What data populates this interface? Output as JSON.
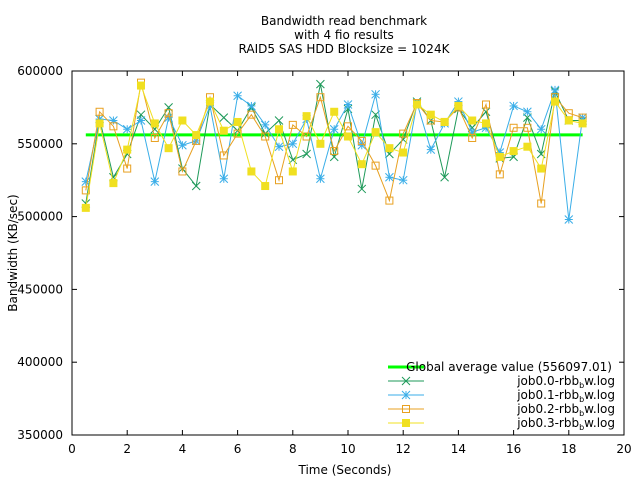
{
  "chart_data": {
    "type": "line",
    "title_lines": [
      "Bandwidth read benchmark",
      "with 4 fio results",
      "RAID5 SAS HDD  Blocksize = 1024K"
    ],
    "xlabel": "Time (Seconds)",
    "ylabel": "Bandwidth (KB/sec)",
    "xlim": [
      0,
      20
    ],
    "ylim": [
      350000,
      600000
    ],
    "xticks": [
      0,
      2,
      4,
      6,
      8,
      10,
      12,
      14,
      16,
      18,
      20
    ],
    "yticks": [
      350000,
      400000,
      450000,
      500000,
      550000,
      600000
    ],
    "grid": false,
    "legend_position": "bottom-right",
    "average": {
      "label": "Global average value (556097.01)",
      "value": 556097.01,
      "x_range": [
        0.5,
        18.5
      ],
      "color": "#00ff00"
    },
    "series": [
      {
        "name_main": "job0.0-rbb",
        "name_sub": "b",
        "name_end": "w.log",
        "color": "#1e9a5a",
        "marker": "x",
        "x": [
          0.5,
          1.0,
          1.5,
          2.0,
          2.5,
          3.0,
          3.5,
          4.0,
          4.5,
          5.0,
          5.5,
          6.0,
          6.5,
          7.0,
          7.5,
          8.0,
          8.5,
          9.0,
          9.5,
          10.0,
          10.5,
          11.0,
          11.5,
          12.0,
          12.5,
          13.0,
          13.5,
          14.0,
          14.5,
          15.0,
          15.5,
          16.0,
          16.5,
          17.0,
          17.5,
          18.0,
          18.5
        ],
        "values": [
          509000,
          567000,
          527000,
          543000,
          570000,
          560000,
          575000,
          533000,
          521000,
          577000,
          568000,
          559000,
          575000,
          557000,
          566000,
          539000,
          543000,
          591000,
          541000,
          574000,
          519000,
          570000,
          543000,
          553000,
          579000,
          566000,
          527000,
          574000,
          561000,
          572000,
          540000,
          541000,
          568000,
          543000,
          586000,
          566000,
          566000
        ]
      },
      {
        "name_main": "job0.1-rbb",
        "name_sub": "b",
        "name_end": "w.log",
        "color": "#3aaee8",
        "marker": "star",
        "x": [
          0.5,
          1.0,
          1.5,
          2.0,
          2.5,
          3.0,
          3.5,
          4.0,
          4.5,
          5.0,
          5.5,
          6.0,
          6.5,
          7.0,
          7.5,
          8.0,
          8.5,
          9.0,
          9.5,
          10.0,
          10.5,
          11.0,
          11.5,
          12.0,
          12.5,
          13.0,
          13.5,
          14.0,
          14.5,
          15.0,
          15.5,
          16.0,
          16.5,
          17.0,
          17.5,
          18.0,
          18.5
        ],
        "values": [
          524000,
          567000,
          566000,
          560000,
          566000,
          524000,
          568000,
          549000,
          552000,
          576000,
          526000,
          583000,
          576000,
          563000,
          548000,
          550000,
          567000,
          526000,
          560000,
          577000,
          549000,
          584000,
          527000,
          525000,
          578000,
          546000,
          564000,
          579000,
          558000,
          561000,
          544000,
          576000,
          572000,
          560000,
          587000,
          498000,
          568000
        ]
      },
      {
        "name_main": "job0.2-rbb",
        "name_sub": "b",
        "name_end": "w.log",
        "color": "#e8a020",
        "marker": "square",
        "x": [
          0.5,
          1.0,
          1.5,
          2.0,
          2.5,
          3.0,
          3.5,
          4.0,
          4.5,
          5.0,
          5.5,
          6.0,
          6.5,
          7.0,
          7.5,
          8.0,
          8.5,
          9.0,
          9.5,
          10.0,
          10.5,
          11.0,
          11.5,
          12.0,
          12.5,
          13.0,
          13.5,
          14.0,
          14.5,
          15.0,
          15.5,
          16.0,
          16.5,
          17.0,
          17.5,
          18.0,
          18.5
        ],
        "values": [
          518000,
          572000,
          562000,
          533000,
          592000,
          554000,
          571000,
          531000,
          552000,
          582000,
          542000,
          557000,
          570000,
          555000,
          525000,
          563000,
          555000,
          582000,
          545000,
          562000,
          552000,
          535000,
          511000,
          557000,
          578000,
          566000,
          565000,
          575000,
          554000,
          577000,
          529000,
          561000,
          561000,
          509000,
          582000,
          571000,
          568000
        ]
      },
      {
        "name_main": "job0.3-rbb",
        "name_sub": "b",
        "name_end": "w.log",
        "color": "#f0e020",
        "marker": "filled-square",
        "x": [
          0.5,
          1.0,
          1.5,
          2.0,
          2.5,
          3.0,
          3.5,
          4.0,
          4.5,
          5.0,
          5.5,
          6.0,
          6.5,
          7.0,
          7.5,
          8.0,
          8.5,
          9.0,
          9.5,
          10.0,
          10.5,
          11.0,
          11.5,
          12.0,
          12.5,
          13.0,
          13.5,
          14.0,
          14.5,
          15.0,
          15.5,
          16.0,
          16.5,
          17.0,
          17.5,
          18.0,
          18.5
        ],
        "values": [
          506000,
          564000,
          523000,
          546000,
          590000,
          564000,
          547000,
          566000,
          556000,
          579000,
          559000,
          565000,
          531000,
          521000,
          560000,
          531000,
          569000,
          550000,
          572000,
          555000,
          536000,
          558000,
          547000,
          544000,
          577000,
          570000,
          565000,
          576000,
          566000,
          564000,
          541000,
          545000,
          548000,
          533000,
          579000,
          566000,
          564000
        ]
      }
    ]
  }
}
